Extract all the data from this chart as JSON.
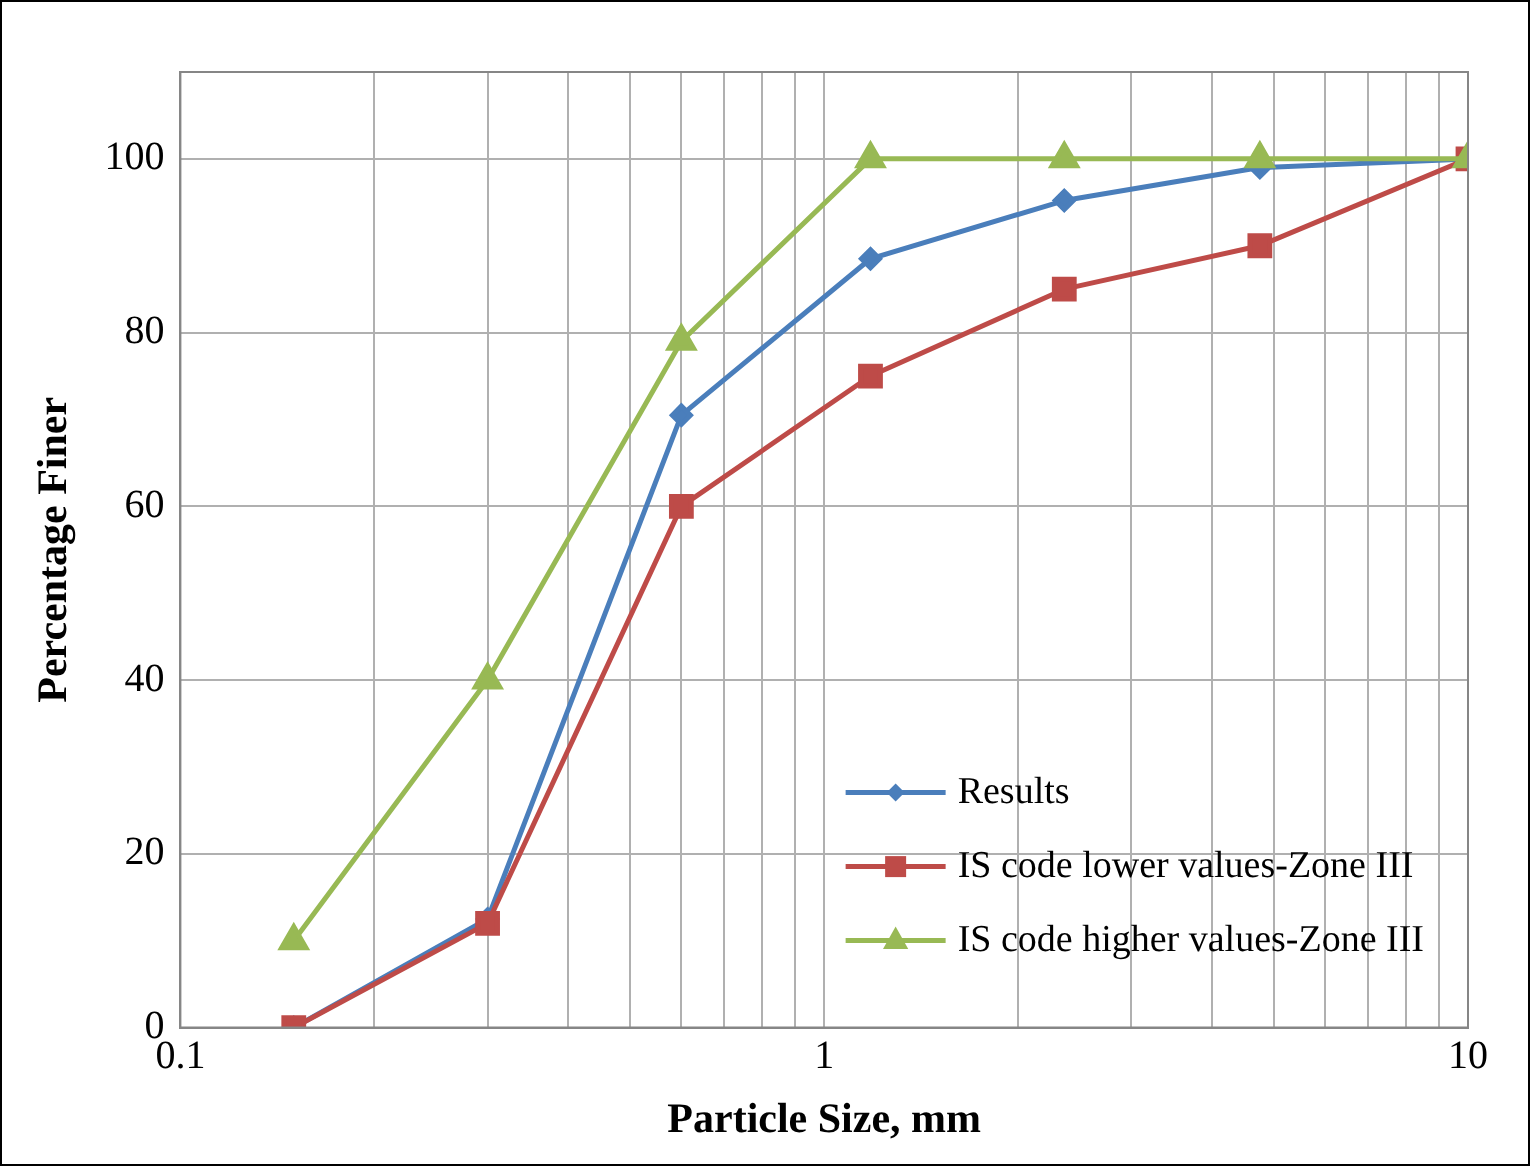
{
  "chart_data": {
    "type": "line",
    "xlabel": "Particle Size, mm",
    "ylabel": "Percentage Finer",
    "x": [
      0.15,
      0.3,
      0.6,
      1.18,
      2.36,
      4.75,
      10
    ],
    "series": [
      {
        "name": "Results",
        "color": "#4a7ebb",
        "marker": "diamond",
        "values": [
          0,
          12.5,
          70.5,
          88.5,
          95.2,
          99,
          100
        ]
      },
      {
        "name": "IS code lower values-Zone III",
        "color": "#be4b48",
        "marker": "square",
        "values": [
          0,
          12,
          60,
          75,
          85,
          90,
          100
        ]
      },
      {
        "name": "IS code higher values-Zone III",
        "color": "#98b954",
        "marker": "triangle",
        "values": [
          10,
          40,
          79,
          100,
          100,
          100,
          100
        ]
      }
    ],
    "log": "x",
    "xlim": [
      0.1,
      10
    ],
    "xticks": [
      0.1,
      {
        "value": 0.2,
        "label": null
      },
      {
        "value": 0.3,
        "label": null
      },
      {
        "value": 0.4,
        "label": null
      },
      {
        "value": 0.5,
        "label": null
      },
      {
        "value": 0.6,
        "label": null
      },
      {
        "value": 0.7,
        "label": null
      },
      {
        "value": 0.8,
        "label": null
      },
      {
        "value": 0.9,
        "label": null
      },
      1,
      {
        "value": 2,
        "label": null
      },
      {
        "value": 3,
        "label": null
      },
      {
        "value": 4,
        "label": null
      },
      {
        "value": 5,
        "label": null
      },
      {
        "value": 6,
        "label": null
      },
      {
        "value": 7,
        "label": null
      },
      {
        "value": 8,
        "label": null
      },
      {
        "value": 9,
        "label": null
      },
      10
    ],
    "ylim": [
      0,
      110
    ],
    "yticks": [
      0,
      20,
      40,
      60,
      80,
      100
    ],
    "grid": true,
    "legend": "bottom right",
    "line_style": "solid"
  }
}
